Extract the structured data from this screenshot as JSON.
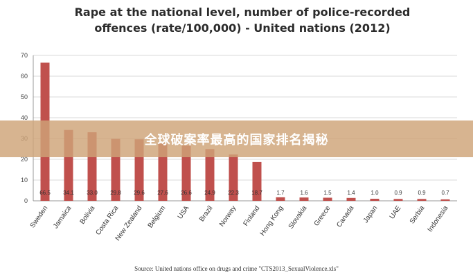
{
  "chart_data": {
    "type": "bar",
    "title_lines": [
      "Rape at the national level, number of police-recorded",
      "offences (rate/100,000) - United nations (2012)"
    ],
    "categories": [
      "Sweden",
      "Jamaica",
      "Bolivia",
      "Costa Rica",
      "New Zealand",
      "Belgium",
      "USA",
      "Brazil",
      "Norway",
      "Finland",
      "Hong Kong",
      "Slovakia",
      "Greece",
      "Canada",
      "Japan",
      "UAE",
      "Serbia",
      "Indonesia"
    ],
    "values": [
      66.5,
      34.1,
      33.0,
      29.8,
      29.6,
      27.6,
      26.6,
      24.9,
      22.3,
      18.7,
      1.7,
      1.6,
      1.5,
      1.4,
      1.0,
      0.9,
      0.9,
      0.7
    ],
    "value_labels": [
      "66.5",
      "34.1",
      "33.0",
      "29.8",
      "29.6",
      "27.6",
      "26.6",
      "24.9",
      "22.3",
      "18.7",
      "1.7",
      "1.6",
      "1.5",
      "1.4",
      "1.0",
      "0.9",
      "0.9",
      "0.7"
    ],
    "y_ticks": [
      "0",
      "10",
      "20",
      "30",
      "40",
      "50",
      "60",
      "70"
    ],
    "ylim": [
      0,
      70
    ],
    "grid": true,
    "bar_color": "#c0504d",
    "source": "Source: United nations office on drugs and crime \"CTS2013_SexualViolence.xls\""
  },
  "banner": {
    "text": "全球破案率最高的国家排名揭秘"
  }
}
